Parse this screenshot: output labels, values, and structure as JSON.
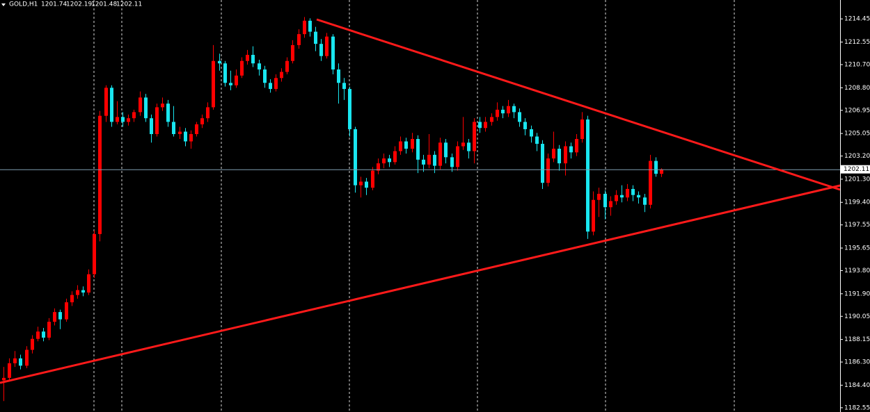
{
  "chart_data": {
    "type": "candlestick",
    "title": "GOLD,H1",
    "up_color": "#ff0000",
    "down_color": "#19e6f0",
    "ylim": [
      1182.2,
      1216.0
    ],
    "yticks": [
      1214.45,
      1212.55,
      {
        "value": 1210.7,
        "label": "1210.70"
      },
      {
        "value": 1208.8,
        "label": "1208.80"
      },
      1206.95,
      1205.05,
      {
        "value": 1203.2,
        "label": "1203.20"
      },
      {
        "value": 1201.3,
        "label": "1201.30"
      },
      {
        "value": 1199.4,
        "label": "1199.40"
      },
      1197.55,
      1195.65,
      {
        "value": 1193.8,
        "label": "1193.80"
      },
      {
        "value": 1191.9,
        "label": "1191.90"
      },
      1190.05,
      1188.15,
      {
        "value": 1186.3,
        "label": "1186.30"
      },
      {
        "value": 1184.4,
        "label": "1184.40"
      },
      1182.55
    ],
    "candles": [
      [
        1184.8,
        1185.9,
        1183.1,
        1185.0
      ],
      [
        1185.0,
        1186.6,
        1184.7,
        1186.2
      ],
      [
        1186.2,
        1187.2,
        1185.9,
        1186.6
      ],
      [
        1186.6,
        1186.9,
        1185.7,
        1186.0
      ],
      [
        1186.0,
        1187.6,
        1185.8,
        1187.3
      ],
      [
        1187.3,
        1188.5,
        1187.0,
        1188.2
      ],
      [
        1188.2,
        1189.2,
        1188.0,
        1188.8
      ],
      [
        1188.8,
        1189.1,
        1188.0,
        1188.3
      ],
      [
        1188.3,
        1189.9,
        1188.1,
        1189.6
      ],
      [
        1189.6,
        1190.7,
        1189.3,
        1190.4
      ],
      [
        1190.4,
        1190.6,
        1189.0,
        1189.8
      ],
      [
        1189.8,
        1191.5,
        1189.6,
        1191.2
      ],
      [
        1191.2,
        1192.1,
        1190.9,
        1191.8
      ],
      [
        1191.8,
        1192.6,
        1191.5,
        1192.2
      ],
      [
        1192.2,
        1192.5,
        1191.7,
        1192.0
      ],
      [
        1192.0,
        1193.9,
        1191.8,
        1193.5
      ],
      [
        1193.5,
        1197.1,
        1193.2,
        1196.8
      ],
      [
        1196.8,
        1206.9,
        1196.2,
        1206.5
      ],
      [
        1206.5,
        1209.0,
        1206.0,
        1208.8
      ],
      [
        1208.8,
        1209.0,
        1205.6,
        1206.0
      ],
      [
        1206.0,
        1207.7,
        1205.8,
        1206.4
      ],
      [
        1206.4,
        1206.8,
        1205.6,
        1206.0
      ],
      [
        1206.0,
        1206.6,
        1205.7,
        1206.3
      ],
      [
        1206.3,
        1207.0,
        1206.0,
        1206.8
      ],
      [
        1206.8,
        1208.5,
        1206.5,
        1208.0
      ],
      [
        1208.0,
        1208.3,
        1206.0,
        1206.3
      ],
      [
        1206.3,
        1206.6,
        1204.3,
        1205.0
      ],
      [
        1205.0,
        1207.5,
        1204.8,
        1207.2
      ],
      [
        1207.2,
        1208.0,
        1206.9,
        1207.5
      ],
      [
        1207.5,
        1207.8,
        1205.6,
        1206.0
      ],
      [
        1206.0,
        1207.3,
        1204.8,
        1205.0
      ],
      [
        1205.0,
        1205.6,
        1204.6,
        1205.2
      ],
      [
        1205.2,
        1205.5,
        1204.0,
        1204.4
      ],
      [
        1204.4,
        1205.3,
        1203.8,
        1205.0
      ],
      [
        1205.0,
        1206.0,
        1204.8,
        1205.8
      ],
      [
        1205.8,
        1206.6,
        1205.5,
        1206.3
      ],
      [
        1206.3,
        1207.6,
        1206.0,
        1207.2
      ],
      [
        1207.2,
        1212.3,
        1207.0,
        1211.0
      ],
      [
        1211.0,
        1211.6,
        1210.2,
        1210.8
      ],
      [
        1210.8,
        1211.0,
        1208.9,
        1209.2
      ],
      [
        1209.2,
        1210.2,
        1208.6,
        1209.0
      ],
      [
        1209.0,
        1210.3,
        1208.8,
        1209.8
      ],
      [
        1209.8,
        1211.3,
        1209.6,
        1211.0
      ],
      [
        1211.0,
        1211.9,
        1210.7,
        1211.5
      ],
      [
        1211.5,
        1212.2,
        1210.5,
        1210.8
      ],
      [
        1210.8,
        1211.1,
        1209.8,
        1210.3
      ],
      [
        1210.3,
        1210.6,
        1208.8,
        1209.2
      ],
      [
        1209.2,
        1209.5,
        1208.4,
        1208.7
      ],
      [
        1208.7,
        1209.9,
        1208.5,
        1209.6
      ],
      [
        1209.6,
        1210.4,
        1209.3,
        1210.1
      ],
      [
        1210.1,
        1211.3,
        1209.9,
        1211.0
      ],
      [
        1211.0,
        1212.7,
        1210.8,
        1212.3
      ],
      [
        1212.3,
        1213.6,
        1212.0,
        1213.2
      ],
      [
        1213.2,
        1214.6,
        1212.9,
        1214.3
      ],
      [
        1214.3,
        1214.5,
        1213.0,
        1213.4
      ],
      [
        1213.4,
        1213.8,
        1211.8,
        1212.4
      ],
      [
        1212.4,
        1212.8,
        1211.0,
        1211.4
      ],
      [
        1211.4,
        1213.3,
        1211.2,
        1213.0
      ],
      [
        1213.0,
        1213.2,
        1209.9,
        1210.3
      ],
      [
        1210.3,
        1210.8,
        1207.5,
        1209.2
      ],
      [
        1209.2,
        1209.6,
        1207.8,
        1208.7
      ],
      [
        1208.7,
        1208.9,
        1204.8,
        1205.4
      ],
      [
        1205.4,
        1205.6,
        1200.2,
        1200.8
      ],
      [
        1200.8,
        1201.5,
        1199.8,
        1201.1
      ],
      [
        1201.1,
        1201.4,
        1200.0,
        1200.6
      ],
      [
        1200.6,
        1202.3,
        1200.4,
        1202.0
      ],
      [
        1202.0,
        1203.0,
        1201.7,
        1202.6
      ],
      [
        1202.6,
        1203.4,
        1202.2,
        1203.0
      ],
      [
        1203.0,
        1203.3,
        1202.3,
        1202.7
      ],
      [
        1202.7,
        1204.0,
        1202.5,
        1203.6
      ],
      [
        1203.6,
        1204.8,
        1203.3,
        1204.4
      ],
      [
        1204.4,
        1204.7,
        1203.4,
        1203.8
      ],
      [
        1203.8,
        1205.1,
        1203.5,
        1204.6
      ],
      [
        1204.6,
        1204.9,
        1201.8,
        1202.9
      ],
      [
        1202.9,
        1203.3,
        1201.9,
        1202.5
      ],
      [
        1202.5,
        1205.0,
        1202.2,
        1203.3
      ],
      [
        1203.3,
        1203.6,
        1201.8,
        1202.4
      ],
      [
        1202.4,
        1204.7,
        1202.1,
        1204.3
      ],
      [
        1204.3,
        1204.6,
        1202.6,
        1203.1
      ],
      [
        1203.1,
        1203.4,
        1201.9,
        1202.3
      ],
      [
        1202.3,
        1204.4,
        1202.0,
        1204.0
      ],
      [
        1204.0,
        1206.4,
        1203.7,
        1204.3
      ],
      [
        1204.3,
        1204.6,
        1203.0,
        1203.6
      ],
      [
        1203.6,
        1206.3,
        1202.6,
        1206.0
      ],
      [
        1206.0,
        1206.4,
        1205.1,
        1205.5
      ],
      [
        1205.5,
        1206.4,
        1205.2,
        1206.0
      ],
      [
        1206.0,
        1206.7,
        1205.7,
        1206.4
      ],
      [
        1206.4,
        1207.6,
        1206.1,
        1207.0
      ],
      [
        1207.0,
        1207.3,
        1206.3,
        1206.7
      ],
      [
        1206.7,
        1207.8,
        1206.4,
        1207.3
      ],
      [
        1207.3,
        1207.5,
        1206.3,
        1206.8
      ],
      [
        1206.8,
        1207.1,
        1205.6,
        1206.0
      ],
      [
        1206.0,
        1206.3,
        1204.9,
        1205.4
      ],
      [
        1205.4,
        1205.7,
        1204.3,
        1204.8
      ],
      [
        1204.8,
        1205.1,
        1203.6,
        1204.2
      ],
      [
        1204.2,
        1204.5,
        1200.5,
        1201.0
      ],
      [
        1201.0,
        1203.4,
        1200.7,
        1203.0
      ],
      [
        1203.0,
        1205.2,
        1202.7,
        1203.8
      ],
      [
        1203.8,
        1204.1,
        1202.0,
        1202.6
      ],
      [
        1202.6,
        1204.4,
        1201.6,
        1204.0
      ],
      [
        1204.0,
        1204.3,
        1203.0,
        1203.5
      ],
      [
        1203.5,
        1205.0,
        1203.2,
        1204.6
      ],
      [
        1204.6,
        1206.8,
        1204.3,
        1206.2
      ],
      [
        1206.2,
        1206.5,
        1196.4,
        1197.0
      ],
      [
        1197.0,
        1200.3,
        1196.7,
        1199.6
      ],
      [
        1199.6,
        1200.6,
        1198.2,
        1200.1
      ],
      [
        1200.1,
        1200.4,
        1198.0,
        1199.0
      ],
      [
        1199.0,
        1199.9,
        1198.3,
        1199.5
      ],
      [
        1199.5,
        1200.4,
        1199.2,
        1200.0
      ],
      [
        1200.0,
        1200.8,
        1199.4,
        1199.8
      ],
      [
        1199.8,
        1200.9,
        1199.5,
        1200.5
      ],
      [
        1200.5,
        1200.8,
        1199.5,
        1200.0
      ],
      [
        1200.0,
        1200.3,
        1199.3,
        1199.8
      ],
      [
        1199.8,
        1200.1,
        1198.6,
        1199.2
      ],
      [
        1199.2,
        1203.3,
        1198.9,
        1202.8
      ],
      [
        1202.8,
        1203.1,
        1201.5,
        1201.74
      ],
      [
        1201.74,
        1202.19,
        1201.48,
        1202.11
      ]
    ]
  }
}
